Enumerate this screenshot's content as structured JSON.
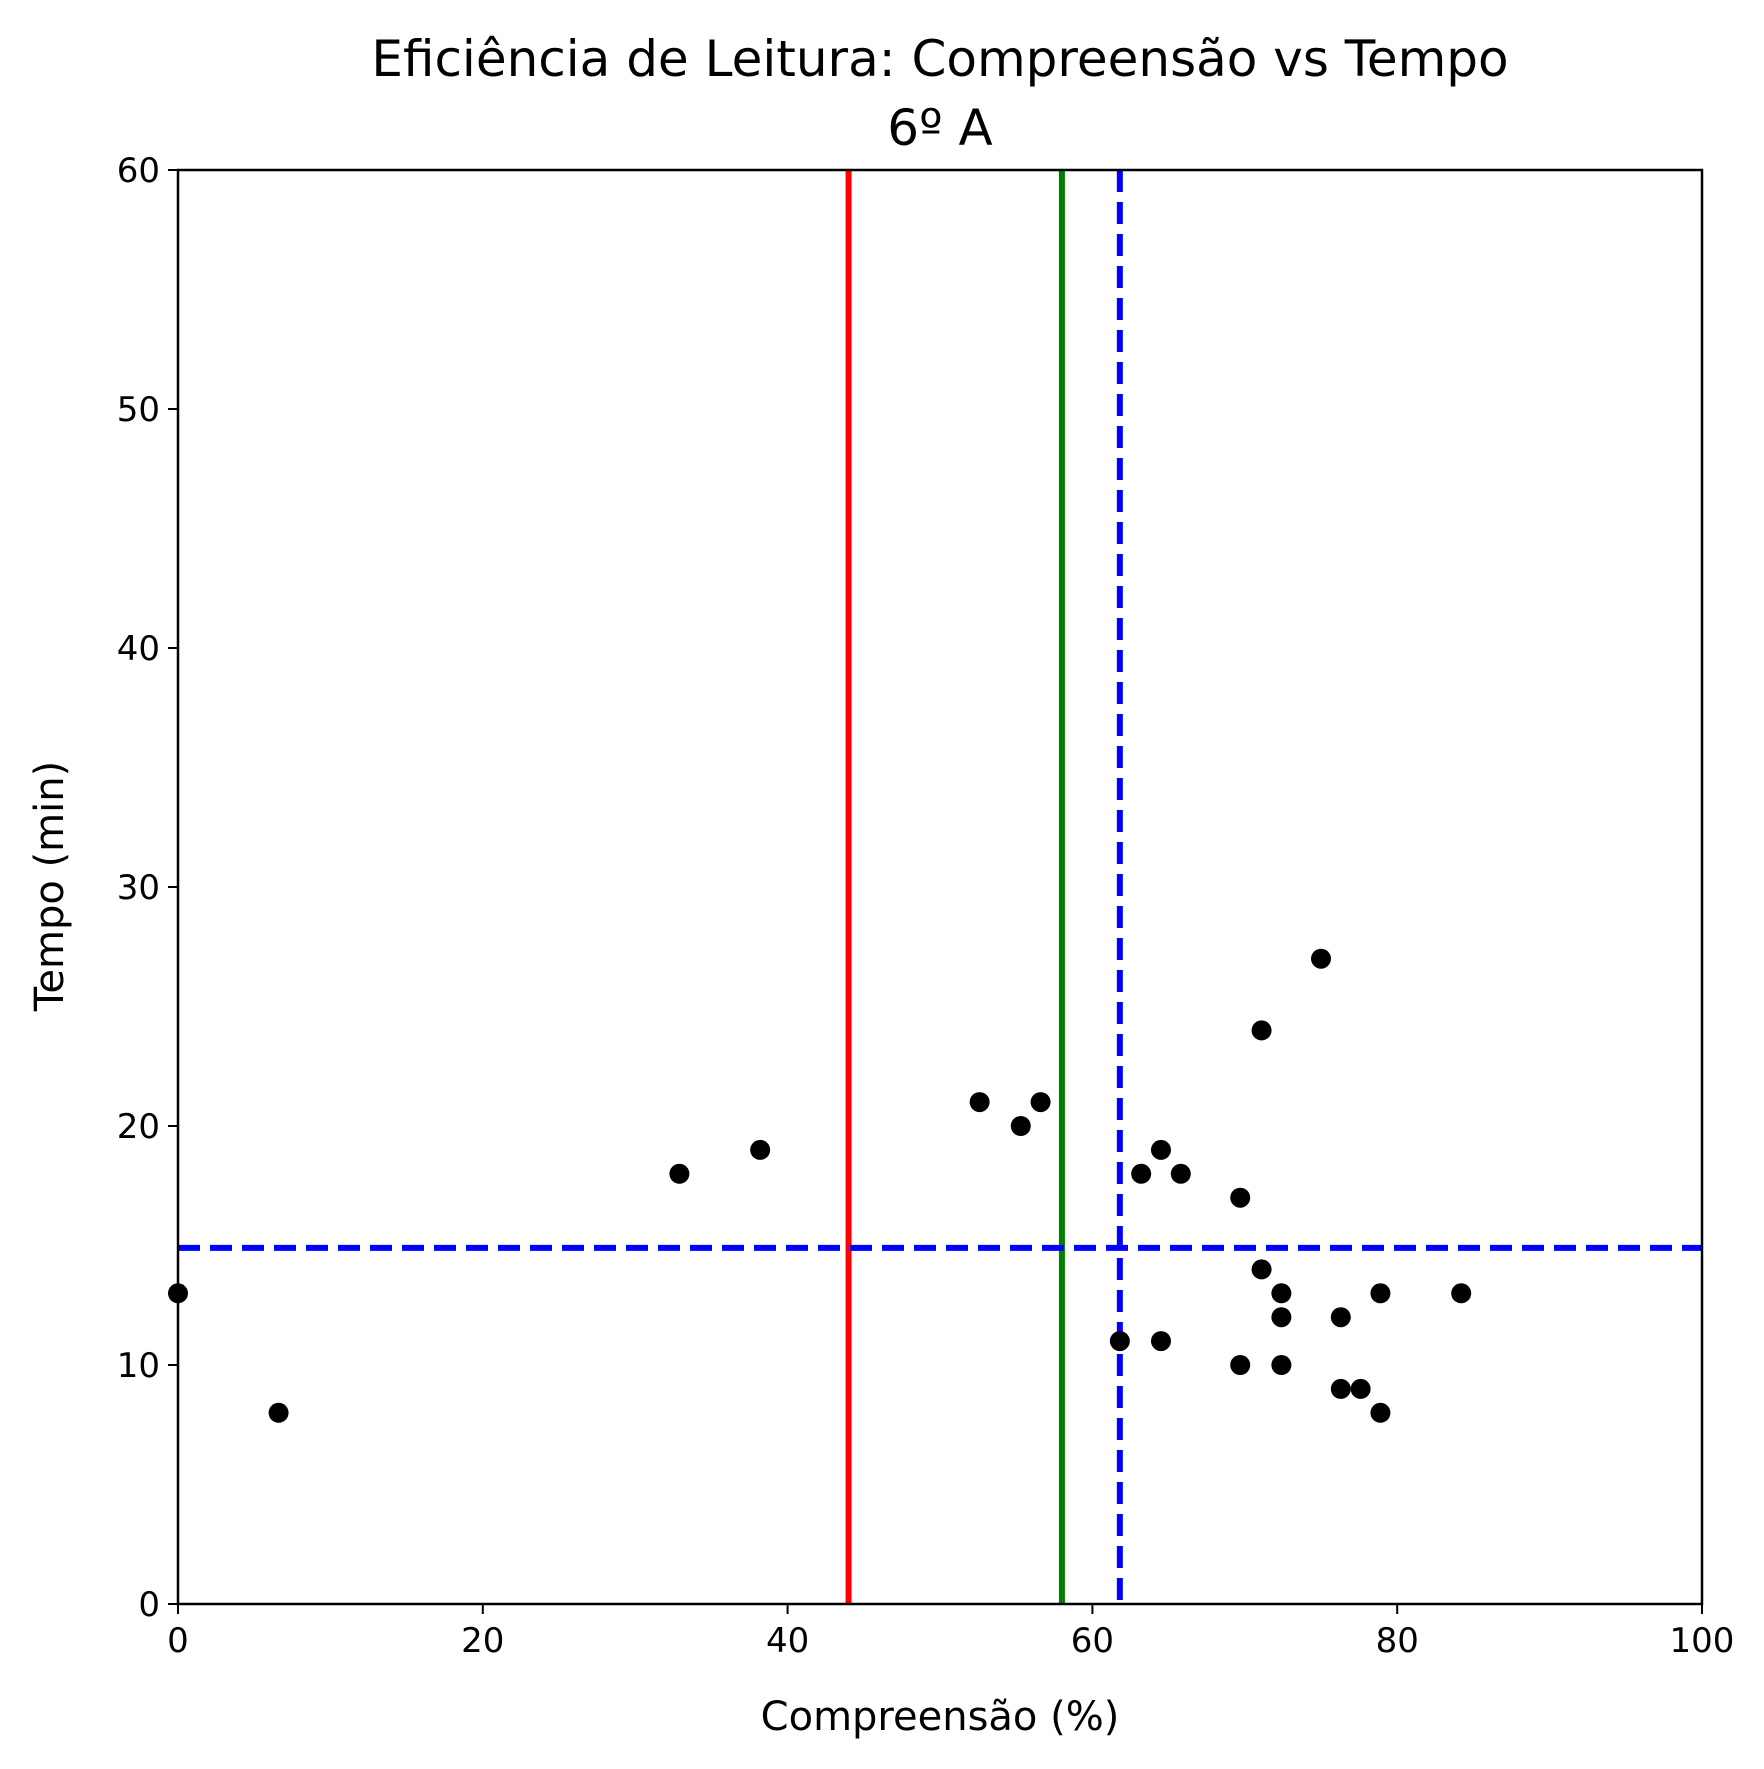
{
  "chart_data": {
    "type": "scatter",
    "title": "Eficiência de Leitura: Compreensão vs Tempo",
    "subtitle": "6º A",
    "xlabel": "Compreensão (%)",
    "ylabel": "Tempo (min)",
    "xlim": [
      0,
      100
    ],
    "ylim": [
      0,
      60
    ],
    "xticks": [
      0,
      20,
      40,
      60,
      80,
      100
    ],
    "yticks": [
      0,
      10,
      20,
      30,
      40,
      50,
      60
    ],
    "grid": false,
    "legend": "none",
    "marker_color": "#000000",
    "points": [
      {
        "x": 0,
        "y": 13
      },
      {
        "x": 6.6,
        "y": 8
      },
      {
        "x": 32.9,
        "y": 18
      },
      {
        "x": 38.2,
        "y": 19
      },
      {
        "x": 52.6,
        "y": 21
      },
      {
        "x": 55.3,
        "y": 20
      },
      {
        "x": 56.6,
        "y": 21
      },
      {
        "x": 61.8,
        "y": 11
      },
      {
        "x": 63.2,
        "y": 18
      },
      {
        "x": 64.5,
        "y": 19
      },
      {
        "x": 64.5,
        "y": 11
      },
      {
        "x": 65.8,
        "y": 18
      },
      {
        "x": 69.7,
        "y": 17
      },
      {
        "x": 69.7,
        "y": 10
      },
      {
        "x": 71.1,
        "y": 24
      },
      {
        "x": 71.1,
        "y": 14
      },
      {
        "x": 72.4,
        "y": 13
      },
      {
        "x": 72.4,
        "y": 12
      },
      {
        "x": 72.4,
        "y": 10
      },
      {
        "x": 75.0,
        "y": 27
      },
      {
        "x": 76.3,
        "y": 12
      },
      {
        "x": 76.3,
        "y": 9
      },
      {
        "x": 77.6,
        "y": 9
      },
      {
        "x": 78.9,
        "y": 13
      },
      {
        "x": 78.9,
        "y": 8
      },
      {
        "x": 84.2,
        "y": 13
      }
    ],
    "reference_lines": [
      {
        "orientation": "vertical",
        "value": 44,
        "color": "#ff0000",
        "style": "solid"
      },
      {
        "orientation": "vertical",
        "value": 58,
        "color": "#008000",
        "style": "solid"
      },
      {
        "orientation": "vertical",
        "value": 61.8,
        "color": "#0000ff",
        "style": "dashed"
      },
      {
        "orientation": "horizontal",
        "value": 14.9,
        "color": "#0000ff",
        "style": "dashed"
      }
    ]
  }
}
